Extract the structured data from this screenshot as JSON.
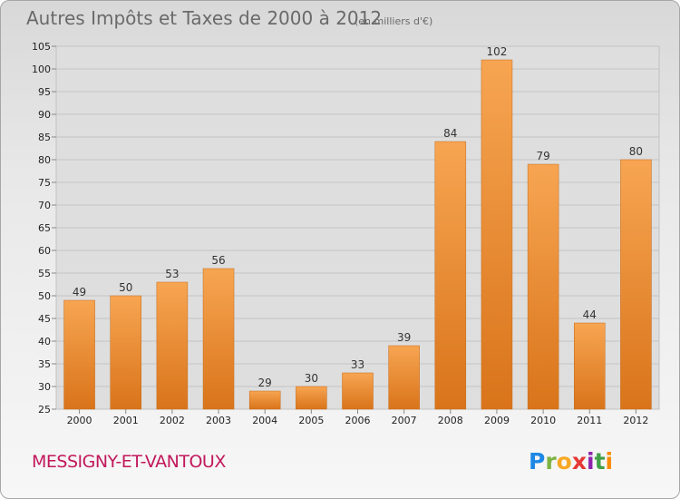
{
  "chart_data": {
    "type": "bar",
    "title": "Autres Impôts et Taxes de 2000 à 2012",
    "subtitle": "(en milliers d'€)",
    "categories": [
      "2000",
      "2001",
      "2002",
      "2003",
      "2004",
      "2005",
      "2006",
      "2007",
      "2008",
      "2009",
      "2010",
      "2011",
      "2012"
    ],
    "values": [
      49,
      50,
      53,
      56,
      29,
      30,
      33,
      39,
      84,
      102,
      79,
      44,
      80
    ],
    "value_labels": [
      "49",
      "50",
      "53",
      "56",
      "29",
      "30",
      "33",
      "39",
      "84",
      "102",
      "79",
      "44",
      "80"
    ],
    "ylim": [
      25,
      105
    ],
    "yticks": [
      25,
      30,
      35,
      40,
      45,
      50,
      55,
      60,
      65,
      70,
      75,
      80,
      85,
      90,
      95,
      100,
      105
    ],
    "ytick_labels": [
      "25",
      "30",
      "35",
      "40",
      "45",
      "50",
      "55",
      "60",
      "65",
      "70",
      "75",
      "80",
      "85",
      "90",
      "95",
      "100",
      "105"
    ],
    "grid": true,
    "bar_color": "#f0892a",
    "xlabel": "",
    "ylabel": ""
  },
  "footer": {
    "commune": "MESSIGNY-ET-VANTOUX",
    "commune_color": "#c2185b"
  },
  "logo": {
    "letters": [
      "P",
      "r",
      "o",
      "x",
      "i",
      "t",
      "i"
    ],
    "colors": [
      "#1e88e5",
      "#7cb342",
      "#f9a825",
      "#e53935",
      "#8e24aa",
      "#43a047",
      "#fb8c00"
    ]
  }
}
